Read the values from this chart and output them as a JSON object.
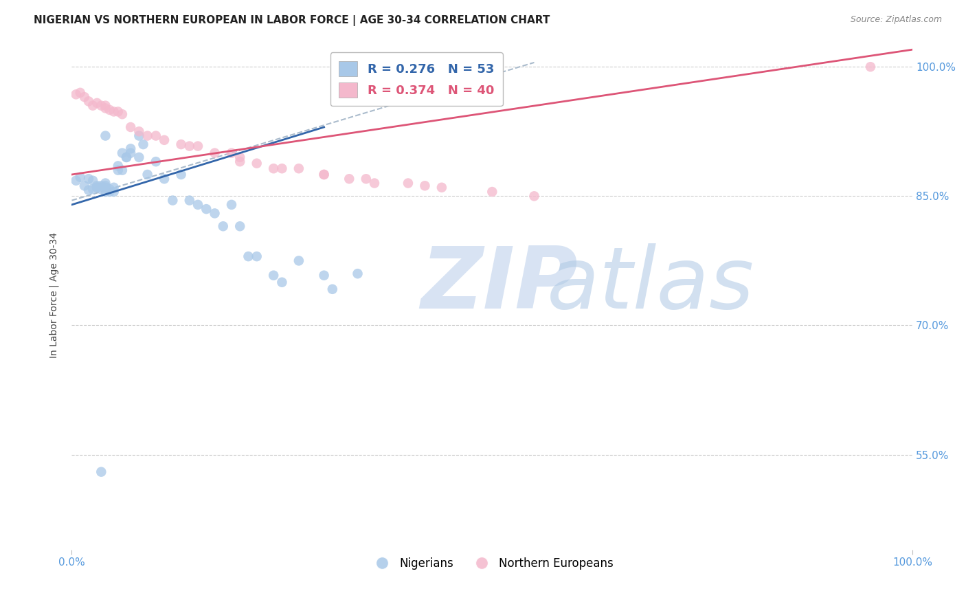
{
  "title": "NIGERIAN VS NORTHERN EUROPEAN IN LABOR FORCE | AGE 30-34 CORRELATION CHART",
  "source": "Source: ZipAtlas.com",
  "ylabel": "In Labor Force | Age 30-34",
  "xlim": [
    0,
    1.0
  ],
  "ylim": [
    0.44,
    1.03
  ],
  "ytick_labels": [
    "55.0%",
    "70.0%",
    "85.0%",
    "100.0%"
  ],
  "ytick_values": [
    0.55,
    0.7,
    0.85,
    1.0
  ],
  "xtick_labels": [
    "0.0%",
    "100.0%"
  ],
  "xtick_values": [
    0.0,
    1.0
  ],
  "blue_scatter_x": [
    0.005,
    0.01,
    0.015,
    0.02,
    0.02,
    0.025,
    0.025,
    0.03,
    0.03,
    0.03,
    0.035,
    0.035,
    0.04,
    0.04,
    0.04,
    0.04,
    0.045,
    0.045,
    0.05,
    0.05,
    0.055,
    0.055,
    0.06,
    0.06,
    0.065,
    0.065,
    0.07,
    0.07,
    0.08,
    0.08,
    0.085,
    0.09,
    0.1,
    0.11,
    0.12,
    0.13,
    0.14,
    0.15,
    0.16,
    0.17,
    0.18,
    0.19,
    0.2,
    0.21,
    0.22,
    0.24,
    0.25,
    0.27,
    0.3,
    0.31,
    0.34,
    0.035,
    0.04
  ],
  "blue_scatter_y": [
    0.868,
    0.872,
    0.862,
    0.857,
    0.87,
    0.858,
    0.868,
    0.86,
    0.86,
    0.862,
    0.862,
    0.858,
    0.855,
    0.86,
    0.862,
    0.865,
    0.855,
    0.858,
    0.855,
    0.86,
    0.88,
    0.885,
    0.9,
    0.88,
    0.895,
    0.895,
    0.9,
    0.905,
    0.92,
    0.895,
    0.91,
    0.875,
    0.89,
    0.87,
    0.845,
    0.875,
    0.845,
    0.84,
    0.835,
    0.83,
    0.815,
    0.84,
    0.815,
    0.78,
    0.78,
    0.758,
    0.75,
    0.775,
    0.758,
    0.742,
    0.76,
    0.53,
    0.92
  ],
  "pink_scatter_x": [
    0.005,
    0.01,
    0.015,
    0.02,
    0.025,
    0.03,
    0.035,
    0.04,
    0.04,
    0.045,
    0.05,
    0.055,
    0.06,
    0.07,
    0.08,
    0.09,
    0.1,
    0.11,
    0.13,
    0.14,
    0.15,
    0.17,
    0.19,
    0.2,
    0.22,
    0.24,
    0.27,
    0.3,
    0.33,
    0.36,
    0.2,
    0.25,
    0.3,
    0.35,
    0.4,
    0.42,
    0.44,
    0.5,
    0.55,
    0.95
  ],
  "pink_scatter_y": [
    0.968,
    0.97,
    0.965,
    0.96,
    0.955,
    0.958,
    0.955,
    0.955,
    0.952,
    0.95,
    0.948,
    0.948,
    0.945,
    0.93,
    0.925,
    0.92,
    0.92,
    0.915,
    0.91,
    0.908,
    0.908,
    0.9,
    0.9,
    0.895,
    0.888,
    0.882,
    0.882,
    0.875,
    0.87,
    0.865,
    0.89,
    0.882,
    0.875,
    0.87,
    0.865,
    0.862,
    0.86,
    0.855,
    0.85,
    1.0
  ],
  "blue_line_x0": 0.0,
  "blue_line_x1": 0.3,
  "blue_line_y0": 0.84,
  "blue_line_y1": 0.93,
  "pink_line_x0": 0.0,
  "pink_line_x1": 1.0,
  "pink_line_y0": 0.875,
  "pink_line_y1": 1.02,
  "dash_line_x0": 0.0,
  "dash_line_x1": 0.55,
  "dash_line_y0": 0.845,
  "dash_line_y1": 1.005,
  "blue_color": "#a8c8e8",
  "pink_color": "#f4b8cc",
  "blue_line_color": "#3366aa",
  "pink_line_color": "#dd5577",
  "dash_color": "#aabbcc",
  "grid_color": "#cccccc",
  "background_color": "#ffffff",
  "title_fontsize": 11,
  "tick_color": "#5599dd",
  "legend_text_color_blue": "#3366aa",
  "legend_text_color_pink": "#dd5577"
}
